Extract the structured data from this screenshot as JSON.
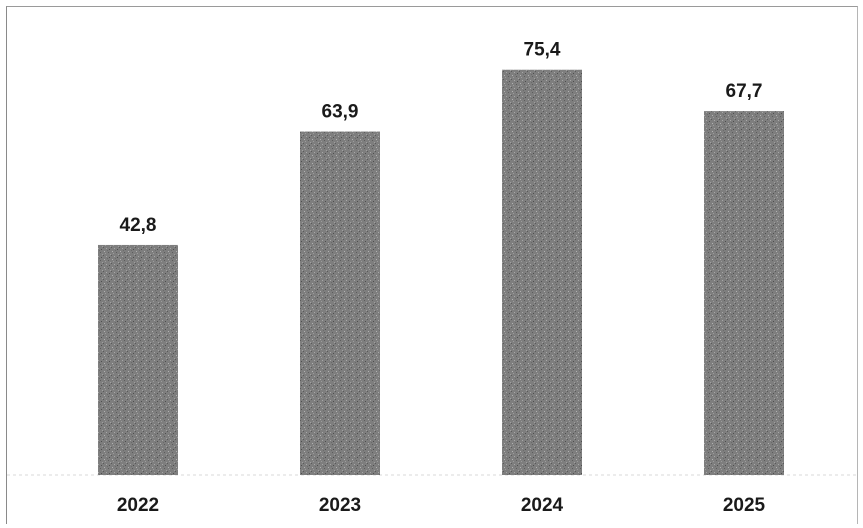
{
  "chart_data": {
    "type": "bar",
    "categories": [
      "2022",
      "2023",
      "2024",
      "2025"
    ],
    "values": [
      42.8,
      63.9,
      75.4,
      67.7
    ],
    "value_labels": [
      "42,8",
      "63,9",
      "75,4",
      "67,7"
    ],
    "title": "",
    "xlabel": "",
    "ylabel": "",
    "ylim": [
      0,
      80
    ],
    "grid": false,
    "legend": "none",
    "bar_color": "#7d7d7d"
  }
}
